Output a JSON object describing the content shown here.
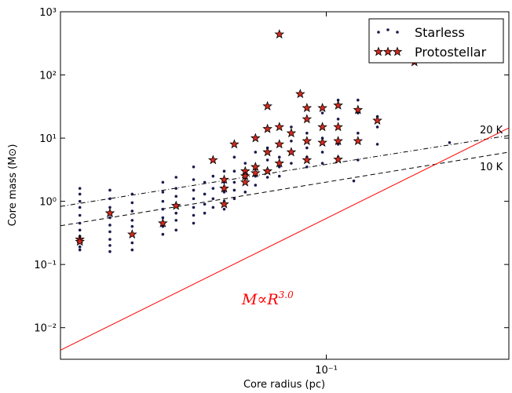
{
  "chart_data": {
    "type": "scatter",
    "xlabel": "Core radius (pc)",
    "ylabel": "Core mass (M⊙)",
    "xscale": "log",
    "yscale": "log",
    "xlim": [
      0.0202,
      0.3
    ],
    "ylim": [
      0.00316,
      1000
    ],
    "xticks": [
      {
        "value": 0.1,
        "label": "10⁻¹"
      }
    ],
    "yticks": [
      {
        "value": 0.01,
        "label": "10⁻²"
      },
      {
        "value": 0.1,
        "label": "10⁻¹"
      },
      {
        "value": 1,
        "label": "10⁰"
      },
      {
        "value": 10,
        "label": "10¹"
      },
      {
        "value": 100,
        "label": "10²"
      },
      {
        "value": 1000,
        "label": "10³"
      }
    ],
    "legend": "upper right",
    "series": [
      {
        "name": "Starless",
        "color": "#1b1b4d",
        "marker": "dot",
        "x": [
          0.0227,
          0.0227,
          0.0227,
          0.0227,
          0.0227,
          0.0227,
          0.0227,
          0.0227,
          0.0227,
          0.0227,
          0.0227,
          0.0272,
          0.0272,
          0.0272,
          0.0272,
          0.0272,
          0.0272,
          0.0272,
          0.0272,
          0.0272,
          0.0311,
          0.0311,
          0.0311,
          0.0311,
          0.0311,
          0.0311,
          0.0311,
          0.0311,
          0.0374,
          0.0374,
          0.0374,
          0.0374,
          0.0374,
          0.0374,
          0.0374,
          0.0405,
          0.0405,
          0.0405,
          0.0405,
          0.0405,
          0.0405,
          0.0405,
          0.045,
          0.045,
          0.045,
          0.045,
          0.045,
          0.045,
          0.045,
          0.0481,
          0.0481,
          0.0481,
          0.0481,
          0.0506,
          0.0506,
          0.0506,
          0.0506,
          0.0506,
          0.0541,
          0.0541,
          0.0541,
          0.0541,
          0.0541,
          0.0575,
          0.0575,
          0.0575,
          0.0575,
          0.0575,
          0.0614,
          0.0614,
          0.0614,
          0.0614,
          0.0653,
          0.0653,
          0.0653,
          0.0653,
          0.0702,
          0.0702,
          0.0702,
          0.0702,
          0.0754,
          0.0754,
          0.0754,
          0.0754,
          0.081,
          0.081,
          0.081,
          0.081,
          0.089,
          0.089,
          0.089,
          0.089,
          0.0977,
          0.0977,
          0.0977,
          0.0977,
          0.1074,
          0.1074,
          0.1074,
          0.1074,
          0.121,
          0.121,
          0.121,
          0.121,
          0.136,
          0.136,
          0.136,
          0.21,
          0.118
        ],
        "values": [
          1.6,
          1.3,
          1.0,
          0.8,
          0.6,
          0.45,
          0.35,
          0.28,
          0.22,
          0.19,
          0.17,
          1.5,
          1.1,
          0.8,
          0.55,
          0.42,
          0.33,
          0.25,
          0.2,
          0.16,
          1.3,
          0.95,
          0.7,
          0.5,
          0.4,
          0.3,
          0.22,
          0.17,
          2.0,
          1.4,
          1.0,
          0.75,
          0.55,
          0.4,
          0.3,
          2.4,
          1.6,
          1.2,
          0.9,
          0.65,
          0.5,
          0.35,
          3.5,
          2.2,
          1.5,
          1.1,
          0.8,
          0.6,
          0.45,
          2.0,
          1.3,
          0.9,
          0.65,
          4.5,
          2.5,
          1.6,
          1.1,
          0.8,
          3.0,
          2.0,
          1.4,
          1.0,
          0.75,
          5.0,
          3.0,
          2.0,
          1.5,
          1.1,
          4.0,
          2.8,
          2.0,
          1.4,
          6,
          3.5,
          2.5,
          1.8,
          7,
          4.5,
          3.2,
          2.4,
          8,
          5,
          3.5,
          2.5,
          15,
          9,
          6,
          4,
          12,
          7,
          5,
          3.5,
          25,
          10,
          6,
          4,
          40,
          20,
          8,
          5,
          40,
          25,
          12,
          4.5,
          22,
          15,
          8,
          8.5,
          2.1
        ]
      },
      {
        "name": "Protostellar",
        "color": "#d42a1e",
        "marker": "star",
        "x": [
          0.0227,
          0.0227,
          0.0272,
          0.0311,
          0.0374,
          0.0405,
          0.0506,
          0.0541,
          0.0541,
          0.0541,
          0.0575,
          0.0614,
          0.0614,
          0.0614,
          0.0653,
          0.0653,
          0.0653,
          0.0702,
          0.0702,
          0.0702,
          0.0702,
          0.0754,
          0.0754,
          0.0754,
          0.0754,
          0.081,
          0.081,
          0.0855,
          0.089,
          0.089,
          0.089,
          0.089,
          0.0977,
          0.0977,
          0.0977,
          0.1074,
          0.1074,
          0.1074,
          0.1074,
          0.121,
          0.121,
          0.136,
          0.17
        ],
        "values": [
          0.25,
          0.23,
          0.65,
          0.3,
          0.45,
          0.85,
          4.5,
          2.2,
          1.6,
          0.9,
          8,
          3.0,
          2.5,
          2.0,
          10,
          3.5,
          2.8,
          32,
          14,
          6,
          3.0,
          440,
          15,
          8,
          4,
          12,
          6,
          50,
          30,
          20,
          9,
          4.5,
          30,
          15,
          8.5,
          33,
          15,
          9,
          4.6,
          28,
          9,
          19,
          160
        ]
      }
    ],
    "lines": [
      {
        "label": "20 K",
        "style": "dashdot",
        "color": "#000000",
        "x": [
          0.0202,
          0.3
        ],
        "values": [
          0.83,
          11
        ]
      },
      {
        "label": "10 K",
        "style": "dashed",
        "color": "#000000",
        "x": [
          0.0202,
          0.3
        ],
        "values": [
          0.41,
          6.0
        ]
      },
      {
        "label": "M∝R",
        "exponent": "3.0",
        "style": "solid",
        "color": "#ff0000",
        "x": [
          0.0202,
          0.3
        ],
        "values": [
          0.0044,
          14.5
        ]
      }
    ]
  }
}
